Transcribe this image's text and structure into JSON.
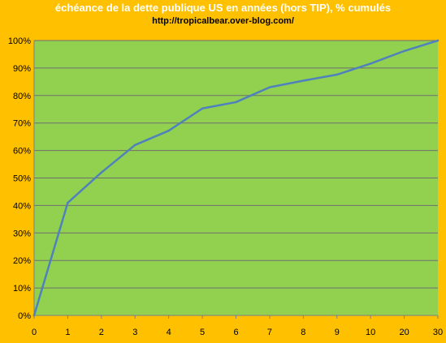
{
  "chart_data": {
    "type": "line",
    "title": "échéance de la dette publique US en années  (hors TIP),  % cumulés",
    "subtitle": "http://tropicalbear.over-blog.com/",
    "categories": [
      "0",
      "1",
      "2",
      "3",
      "4",
      "5",
      "6",
      "7",
      "8",
      "9",
      "10",
      "20",
      "30"
    ],
    "series": [
      {
        "values": [
          0,
          41,
          52,
          62,
          67.2,
          75.3,
          77.6,
          83,
          85.4,
          87.6,
          91.6,
          96.2,
          100
        ]
      }
    ],
    "yticks": [
      "0%",
      "10%",
      "20%",
      "30%",
      "40%",
      "50%",
      "60%",
      "70%",
      "80%",
      "90%",
      "100%"
    ],
    "ylim": [
      0,
      100
    ],
    "grid": true,
    "colors": {
      "background": "#FFC000",
      "plot_area": "#92D050",
      "line": "#4F81BD",
      "gridline": "#6E6E6E",
      "title": "#FFFFFF"
    }
  }
}
